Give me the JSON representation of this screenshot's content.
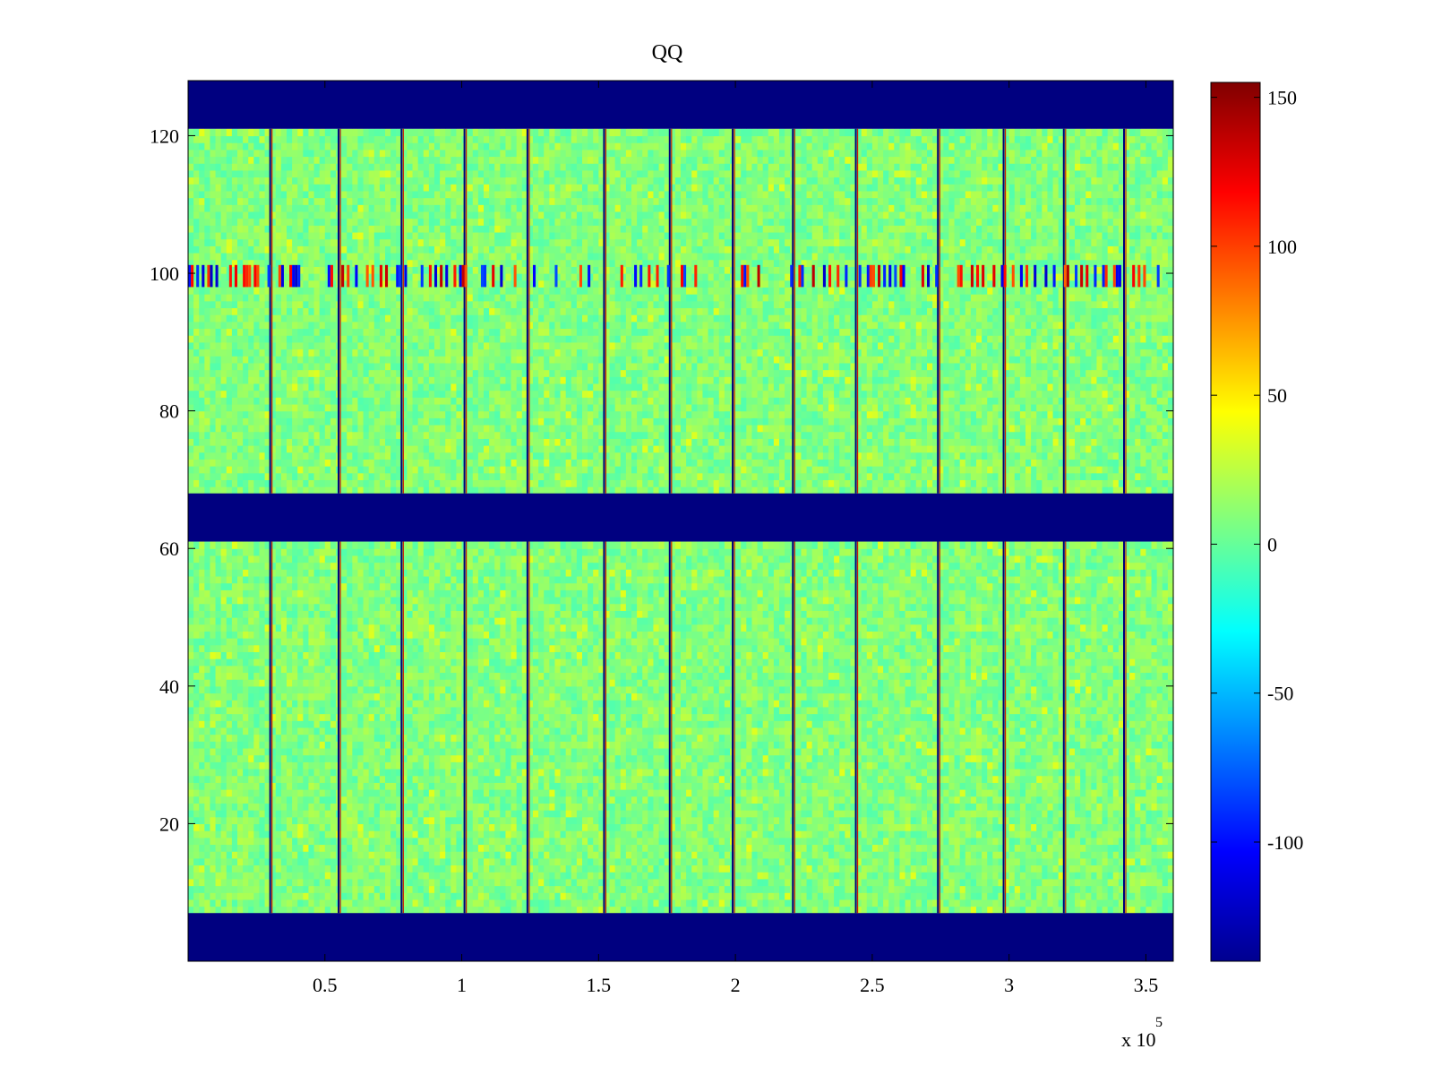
{
  "chart_data": {
    "type": "heatmap",
    "title": "QQ",
    "xlabel": "",
    "ylabel": "",
    "x_exponent_label": "x 10",
    "x_exponent_power": "5",
    "xlim": [
      0,
      3.6
    ],
    "ylim": [
      0,
      128
    ],
    "x_ticks": [
      {
        "value": 0.5,
        "label": "0.5"
      },
      {
        "value": 1,
        "label": "1"
      },
      {
        "value": 1.5,
        "label": "1.5"
      },
      {
        "value": 2,
        "label": "2"
      },
      {
        "value": 2.5,
        "label": "2.5"
      },
      {
        "value": 3,
        "label": "3"
      },
      {
        "value": 3.5,
        "label": "3.5"
      }
    ],
    "y_ticks": [
      {
        "value": 20,
        "label": "20"
      },
      {
        "value": 40,
        "label": "40"
      },
      {
        "value": 60,
        "label": "60"
      },
      {
        "value": 80,
        "label": "80"
      },
      {
        "value": 100,
        "label": "100"
      },
      {
        "value": 120,
        "label": "120"
      }
    ],
    "colorbar": {
      "colormap": "jet",
      "range": [
        -140,
        155
      ],
      "ticks": [
        {
          "value": 150,
          "label": "150"
        },
        {
          "value": 100,
          "label": "100"
        },
        {
          "value": 50,
          "label": "50"
        },
        {
          "value": 0,
          "label": "0"
        },
        {
          "value": -50,
          "label": "-50"
        },
        {
          "value": -100,
          "label": "-100"
        }
      ]
    },
    "masked_row_bands": [
      {
        "y_from": 121,
        "y_to": 128,
        "value": -140
      },
      {
        "y_from": 61,
        "y_to": 68,
        "value": -140
      },
      {
        "y_from": 0,
        "y_to": 7,
        "value": -140
      }
    ],
    "data_row_bands": [
      {
        "y_from": 68,
        "y_to": 121
      },
      {
        "y_from": 7,
        "y_to": 61
      }
    ],
    "column_boundaries_x": [
      0.3,
      0.55,
      0.78,
      1.01,
      1.24,
      1.52,
      1.76,
      1.99,
      2.21,
      2.44,
      2.74,
      2.98,
      3.2,
      3.42
    ],
    "value_distribution": {
      "mean": 8,
      "spread": 14
    },
    "disturbed_row_y": 100,
    "colors": {
      "masked": "#00008f",
      "background": "#ffffff",
      "axes": "#000000"
    }
  }
}
